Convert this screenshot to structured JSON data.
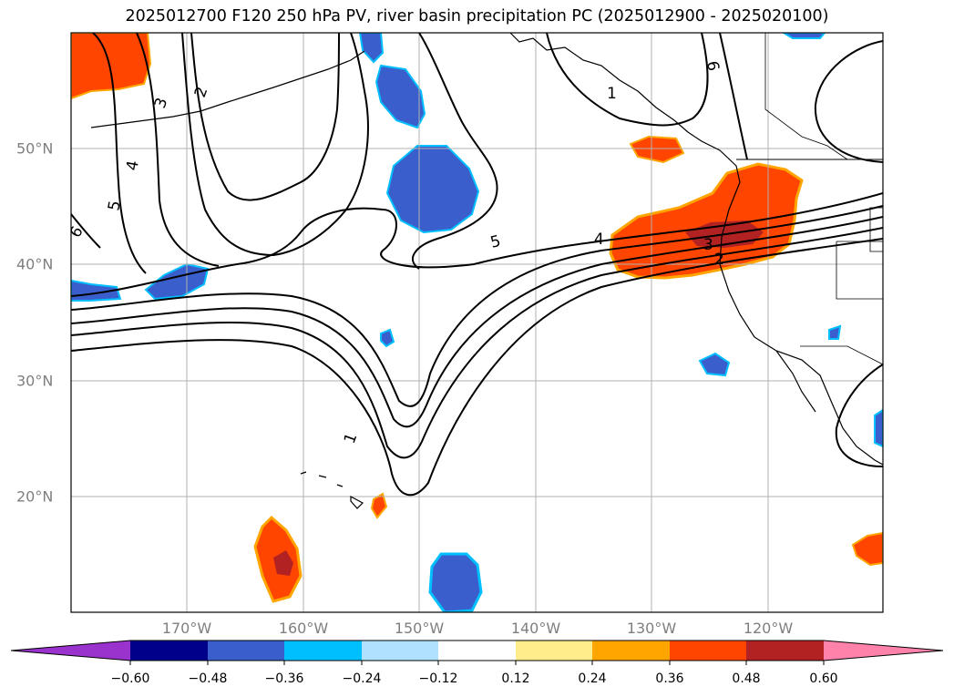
{
  "title": "2025012700 F120 250 hPa PV, river basin precipitation PC (2025012900 - 2025020100)",
  "map": {
    "lon_ticks": [
      "170°W",
      "160°W",
      "150°W",
      "140°W",
      "130°W",
      "120°W"
    ],
    "lat_ticks": [
      "50°N",
      "40°N",
      "30°N",
      "20°N"
    ],
    "grid": true,
    "extent": {
      "lon": [
        -180,
        -110
      ],
      "lat": [
        10,
        60
      ]
    },
    "pv_contour_labels": [
      "1",
      "2",
      "3",
      "4",
      "5",
      "6",
      "2",
      "3",
      "4",
      "5",
      "6",
      "1"
    ]
  },
  "colorbar": {
    "ticks": [
      "−0.60",
      "−0.48",
      "−0.36",
      "−0.24",
      "−0.12",
      "0.12",
      "0.24",
      "0.36",
      "0.48",
      "0.60"
    ],
    "colors": [
      "#9a32cd",
      "#00008b",
      "#3a5fcd",
      "#00bfff",
      "#b0e2ff",
      "#ffffff",
      "#ffec8b",
      "#ffa500",
      "#ff4500",
      "#b22222",
      "#ff82ab"
    ],
    "extend": "both"
  },
  "chart_data": {
    "type": "heatmap",
    "title": "2025012700 F120 250 hPa PV, river basin precipitation PC (2025012900 - 2025020100)",
    "x_ticks": [
      "170°W",
      "160°W",
      "150°W",
      "140°W",
      "130°W",
      "120°W"
    ],
    "y_ticks": [
      "50°N",
      "40°N",
      "30°N",
      "20°N"
    ],
    "color_levels": [
      -0.6,
      -0.48,
      -0.36,
      -0.24,
      -0.12,
      0.12,
      0.24,
      0.36,
      0.48,
      0.6
    ],
    "contour_levels": [
      1,
      2,
      3,
      4,
      5,
      6
    ]
  }
}
